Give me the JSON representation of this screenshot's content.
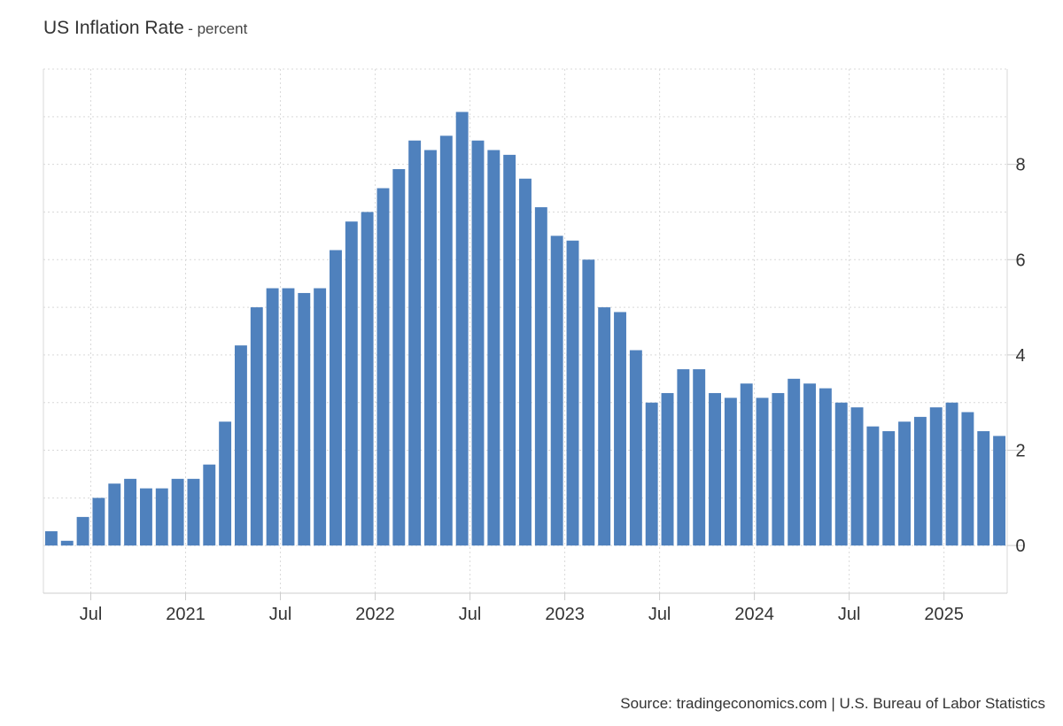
{
  "chart_data": {
    "type": "bar",
    "title": "US Inflation Rate",
    "unit_label": "- percent",
    "source": "Source: tradingeconomics.com | U.S. Bureau of Labor Statistics",
    "x_start": "2020-04",
    "x_end": "2025-04",
    "x": [
      "2020-04",
      "2020-05",
      "2020-06",
      "2020-07",
      "2020-08",
      "2020-09",
      "2020-10",
      "2020-11",
      "2020-12",
      "2021-01",
      "2021-02",
      "2021-03",
      "2021-04",
      "2021-05",
      "2021-06",
      "2021-07",
      "2021-08",
      "2021-09",
      "2021-10",
      "2021-11",
      "2021-12",
      "2022-01",
      "2022-02",
      "2022-03",
      "2022-04",
      "2022-05",
      "2022-06",
      "2022-07",
      "2022-08",
      "2022-09",
      "2022-10",
      "2022-11",
      "2022-12",
      "2023-01",
      "2023-02",
      "2023-03",
      "2023-04",
      "2023-05",
      "2023-06",
      "2023-07",
      "2023-08",
      "2023-09",
      "2023-10",
      "2023-11",
      "2023-12",
      "2024-01",
      "2024-02",
      "2024-03",
      "2024-04",
      "2024-05",
      "2024-06",
      "2024-07",
      "2024-08",
      "2024-09",
      "2024-10",
      "2024-11",
      "2024-12",
      "2025-01",
      "2025-02",
      "2025-03",
      "2025-04"
    ],
    "values": [
      0.3,
      0.1,
      0.6,
      1.0,
      1.3,
      1.4,
      1.2,
      1.2,
      1.4,
      1.4,
      1.7,
      2.6,
      4.2,
      5.0,
      5.4,
      5.4,
      5.3,
      5.4,
      6.2,
      6.8,
      7.0,
      7.5,
      7.9,
      8.5,
      8.3,
      8.6,
      9.1,
      8.5,
      8.3,
      8.2,
      7.7,
      7.1,
      6.5,
      6.4,
      6.0,
      5.0,
      4.9,
      4.1,
      3.0,
      3.2,
      3.7,
      3.7,
      3.2,
      3.1,
      3.4,
      3.1,
      3.2,
      3.5,
      3.4,
      3.3,
      3.0,
      2.9,
      2.5,
      2.4,
      2.6,
      2.7,
      2.9,
      3.0,
      2.8,
      2.4,
      2.3
    ],
    "x_tick_labels": [
      {
        "date": "2020-07",
        "label": "Jul"
      },
      {
        "date": "2021-01",
        "label": "2021"
      },
      {
        "date": "2021-07",
        "label": "Jul"
      },
      {
        "date": "2022-01",
        "label": "2022"
      },
      {
        "date": "2022-07",
        "label": "Jul"
      },
      {
        "date": "2023-01",
        "label": "2023"
      },
      {
        "date": "2023-07",
        "label": "Jul"
      },
      {
        "date": "2024-01",
        "label": "2024"
      },
      {
        "date": "2024-07",
        "label": "Jul"
      },
      {
        "date": "2025-01",
        "label": "2025"
      }
    ],
    "y_ticks": [
      0,
      2,
      4,
      6,
      8
    ],
    "ylim": [
      -1,
      10
    ],
    "y_axis_position": "right",
    "grid": true,
    "bar_color": "#4f81bd",
    "grid_color": "#d9d9d9"
  }
}
